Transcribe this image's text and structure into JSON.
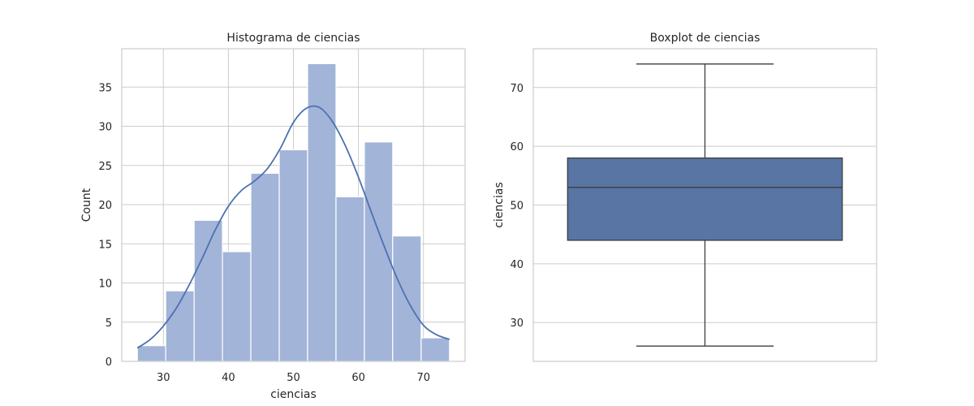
{
  "chart_data": [
    {
      "type": "bar",
      "title": "Histograma de ciencias",
      "xlabel": "ciencias",
      "ylabel": "Count",
      "xlim": [
        23.6,
        76.4
      ],
      "ylim": [
        0,
        39.9
      ],
      "xticks": [
        30,
        40,
        50,
        60,
        70
      ],
      "yticks": [
        0,
        5,
        10,
        15,
        20,
        25,
        30,
        35
      ],
      "bin_edges": [
        26,
        30.36,
        34.73,
        39.09,
        43.45,
        47.82,
        52.18,
        56.55,
        60.91,
        65.27,
        69.64,
        74
      ],
      "values": [
        2,
        9,
        18,
        14,
        24,
        27,
        38,
        21,
        28,
        16,
        3
      ],
      "kde": {
        "x": [
          26,
          28,
          30,
          32,
          34,
          36,
          38,
          40,
          42,
          44,
          46,
          48,
          50,
          52,
          54,
          56,
          58,
          60,
          62,
          64,
          66,
          68,
          70,
          72,
          74
        ],
        "y": [
          1.7,
          2.8,
          4.5,
          6.8,
          9.8,
          13.2,
          16.8,
          19.8,
          21.8,
          23.0,
          24.6,
          27.2,
          30.5,
          32.3,
          32.4,
          30.6,
          27.5,
          23.5,
          19.0,
          14.6,
          10.5,
          7.1,
          4.6,
          3.4,
          2.8
        ]
      },
      "grid": true,
      "color": "#4c72b0",
      "bar_color": "#a2b4d8"
    },
    {
      "type": "box",
      "title": "Boxplot de ciencias",
      "ylabel": "ciencias",
      "ylim": [
        23.4,
        76.6
      ],
      "yticks": [
        30,
        40,
        50,
        60,
        70
      ],
      "whisker_low": 26,
      "q1": 44,
      "median": 53,
      "q3": 58,
      "whisker_high": 74,
      "grid": true,
      "color": "#5875a4",
      "line_color": "#3d3d3d"
    }
  ]
}
